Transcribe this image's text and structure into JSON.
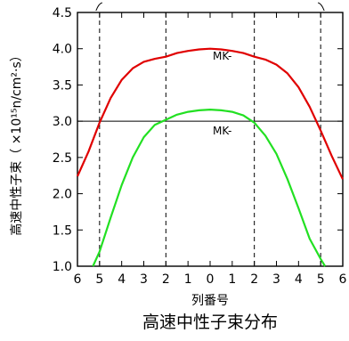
{
  "chart_data": {
    "type": "line",
    "title": "高速中性子束分布",
    "xlabel": "列番号",
    "ylabel": "高速中性子束（ ×10¹⁵n/cm²·s）",
    "ylim": [
      1.0,
      4.5
    ],
    "yticks": [
      "1.0",
      "1.5",
      "2.0",
      "2.5",
      "3.0",
      "3.5",
      "4.0",
      "4.5"
    ],
    "xlim": [
      -6,
      6
    ],
    "xtick_labels": [
      "6",
      "5",
      "4",
      "3",
      "2",
      "1",
      "0",
      "1",
      "2",
      "3",
      "4",
      "5",
      "6"
    ],
    "reference_line": 3.0,
    "boundary_lines_x": [
      -5,
      -2,
      2,
      5
    ],
    "grid": false,
    "series": [
      {
        "label": "MK-",
        "color": "#e00000",
        "points": [
          [
            -6,
            2.24
          ],
          [
            -5.5,
            2.58
          ],
          [
            -5,
            2.98
          ],
          [
            -4.5,
            3.32
          ],
          [
            -4,
            3.57
          ],
          [
            -3.5,
            3.73
          ],
          [
            -3,
            3.82
          ],
          [
            -2.5,
            3.86
          ],
          [
            -2,
            3.89
          ],
          [
            -1.5,
            3.94
          ],
          [
            -1,
            3.97
          ],
          [
            -0.5,
            3.99
          ],
          [
            0,
            4.0
          ],
          [
            0.5,
            3.99
          ],
          [
            1,
            3.97
          ],
          [
            1.5,
            3.94
          ],
          [
            2,
            3.89
          ],
          [
            2.5,
            3.85
          ],
          [
            3,
            3.78
          ],
          [
            3.5,
            3.66
          ],
          [
            4,
            3.47
          ],
          [
            4.5,
            3.2
          ],
          [
            5,
            2.87
          ],
          [
            5.5,
            2.52
          ],
          [
            6,
            2.2
          ]
        ]
      },
      {
        "label": "MK-",
        "color": "#22e022",
        "points": [
          [
            -5.3,
            1.0
          ],
          [
            -5,
            1.2
          ],
          [
            -4.5,
            1.67
          ],
          [
            -4,
            2.12
          ],
          [
            -3.5,
            2.5
          ],
          [
            -3,
            2.78
          ],
          [
            -2.5,
            2.95
          ],
          [
            -2,
            3.02
          ],
          [
            -1.5,
            3.09
          ],
          [
            -1,
            3.13
          ],
          [
            -0.5,
            3.15
          ],
          [
            0,
            3.16
          ],
          [
            0.5,
            3.15
          ],
          [
            1,
            3.13
          ],
          [
            1.5,
            3.08
          ],
          [
            2,
            2.98
          ],
          [
            2.5,
            2.8
          ],
          [
            3,
            2.55
          ],
          [
            3.5,
            2.2
          ],
          [
            4,
            1.8
          ],
          [
            4.5,
            1.38
          ],
          [
            5,
            1.1
          ],
          [
            5.2,
            1.0
          ]
        ]
      }
    ]
  }
}
